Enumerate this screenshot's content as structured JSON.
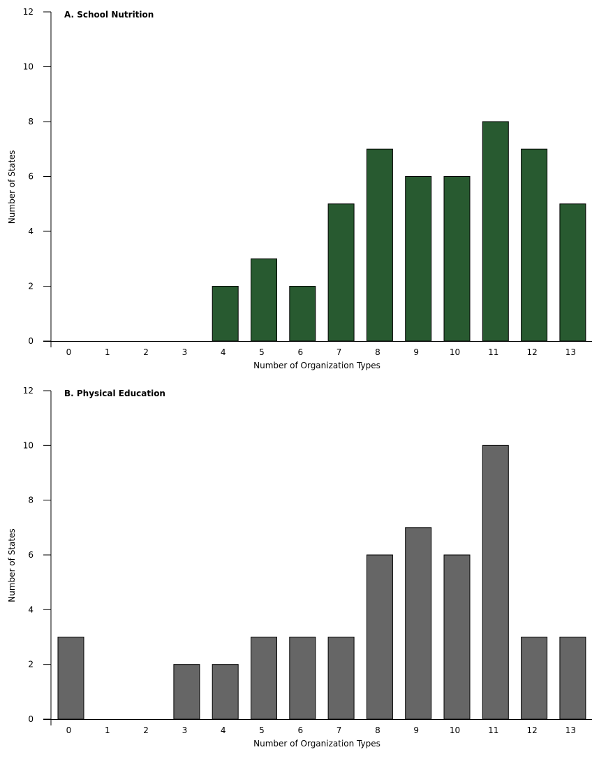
{
  "chart_data": [
    {
      "type": "bar",
      "title": "A. School Nutrition",
      "xlabel": "Number of Organization Types",
      "ylabel": "Number of States",
      "categories": [
        "0",
        "1",
        "2",
        "3",
        "4",
        "5",
        "6",
        "7",
        "8",
        "9",
        "10",
        "11",
        "12",
        "13"
      ],
      "values": [
        0,
        0,
        0,
        0,
        2,
        3,
        2,
        5,
        7,
        6,
        6,
        8,
        7,
        5
      ],
      "ylim": [
        0,
        12
      ],
      "yticks": [
        0,
        2,
        4,
        6,
        8,
        10,
        12
      ],
      "grid": false,
      "bar_color": "#285a30"
    },
    {
      "type": "bar",
      "title": "B. Physical Education",
      "xlabel": "Number of Organization Types",
      "ylabel": "Number of States",
      "categories": [
        "0",
        "1",
        "2",
        "3",
        "4",
        "5",
        "6",
        "7",
        "8",
        "9",
        "10",
        "11",
        "12",
        "13"
      ],
      "values": [
        3,
        0,
        0,
        2,
        2,
        3,
        3,
        3,
        6,
        7,
        6,
        10,
        3,
        3
      ],
      "ylim": [
        0,
        12
      ],
      "yticks": [
        0,
        2,
        4,
        6,
        8,
        10,
        12
      ],
      "grid": false,
      "bar_color": "#666666"
    }
  ]
}
